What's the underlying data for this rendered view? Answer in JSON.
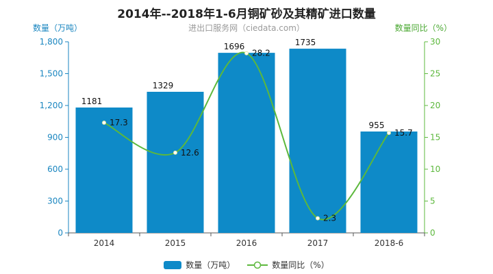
{
  "chart_data": {
    "type": "bar+line",
    "title": "2014年--2018年1-6月铜矿砂及其精矿进口数量",
    "subtitle": "进出口服务网（ciedata.com）",
    "categories": [
      "2014",
      "2015",
      "2016",
      "2017",
      "2018-6"
    ],
    "series": [
      {
        "name": "数量（万吨）",
        "type": "bar",
        "axis": "left",
        "values": [
          1181,
          1329,
          1696,
          1735,
          955
        ],
        "color": "#0e8ac8"
      },
      {
        "name": "数量同比（%）",
        "type": "line",
        "axis": "right",
        "values": [
          17.3,
          12.6,
          28.2,
          2.3,
          15.7
        ],
        "color": "#5cb83c"
      }
    ],
    "ylabel_left": "数量（万吨）",
    "ylabel_right": "数量同比（%）",
    "ylim_left": [
      0,
      1800
    ],
    "yticks_left": [
      "0",
      "300",
      "600",
      "900",
      "1,200",
      "1,500",
      "1,800"
    ],
    "ylim_right": [
      0,
      30
    ],
    "yticks_right": [
      "0",
      "5",
      "10",
      "15",
      "20",
      "25",
      "30"
    ],
    "legend_position": "bottom-center",
    "grid": false
  }
}
